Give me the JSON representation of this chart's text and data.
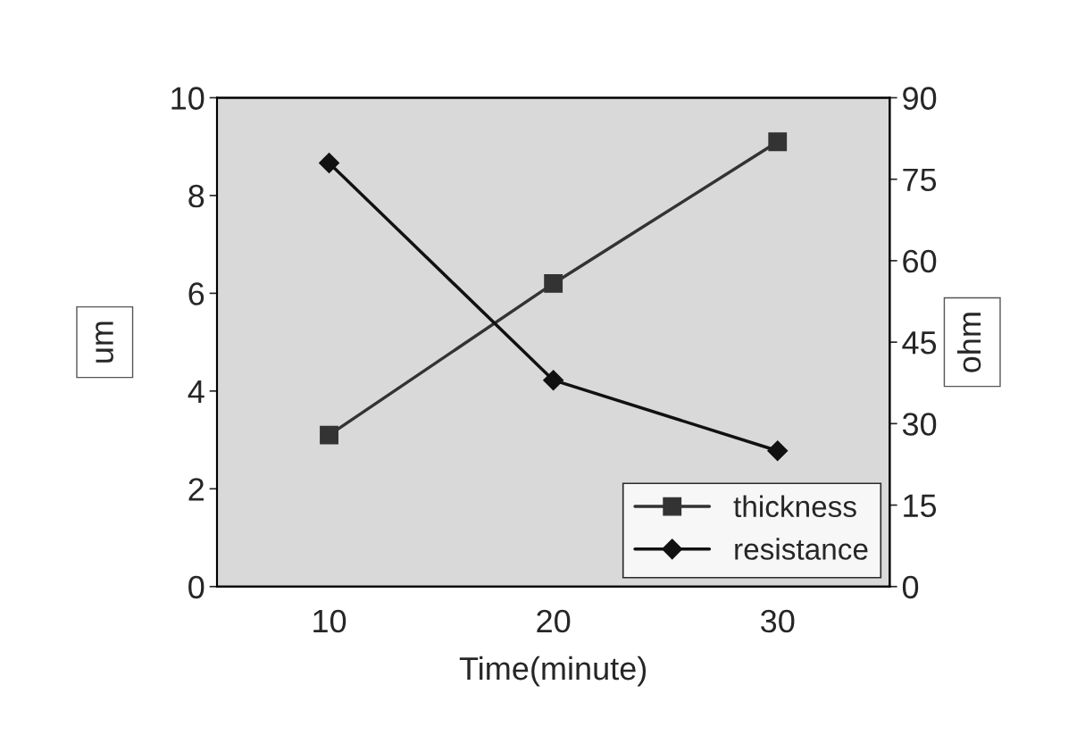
{
  "chart_data": {
    "type": "line",
    "xlabel": "Time(minute)",
    "ylabel": "um",
    "y2label": "ohm",
    "categories": [
      "10",
      "20",
      "30"
    ],
    "series": [
      {
        "name": "thickness",
        "color": "#333333",
        "marker": "square",
        "values": [
          3.1,
          6.2,
          9.1
        ]
      },
      {
        "name": "resistance",
        "color": "#111111",
        "marker": "diamond",
        "axis": "y2",
        "values": [
          78,
          38,
          25
        ]
      }
    ],
    "ylim": [
      0,
      10
    ],
    "yticks": [
      0,
      2,
      4,
      6,
      8,
      10
    ],
    "y2lim": [
      0,
      90
    ],
    "y2ticks": [
      0,
      15,
      30,
      45,
      60,
      75,
      90
    ],
    "grid": false,
    "legend": "bottom right",
    "line_style": "solid"
  }
}
